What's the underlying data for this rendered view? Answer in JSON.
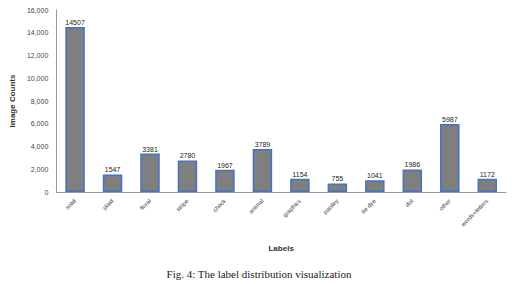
{
  "chart_data": {
    "type": "bar",
    "title": "Fig. 4: The label distribution visualization",
    "x_label": "Labels",
    "y_label": "Image Counts",
    "categories": [
      "solid",
      "plaid",
      "floral",
      "stripe",
      "check",
      "animal",
      "graphics",
      "paisley",
      "tie dye",
      "dot",
      "other",
      "words+letters"
    ],
    "values": [
      14507,
      1547,
      3381,
      2780,
      1967,
      3789,
      1154,
      755,
      1041,
      1986,
      5987,
      1172
    ],
    "color": "#7f7f7f",
    "ylim": [
      0,
      16000
    ],
    "yticks": [
      0,
      2000,
      4000,
      6000,
      8000,
      10000,
      12000,
      14000,
      16000
    ],
    "grid": false,
    "data_labels": true
  }
}
